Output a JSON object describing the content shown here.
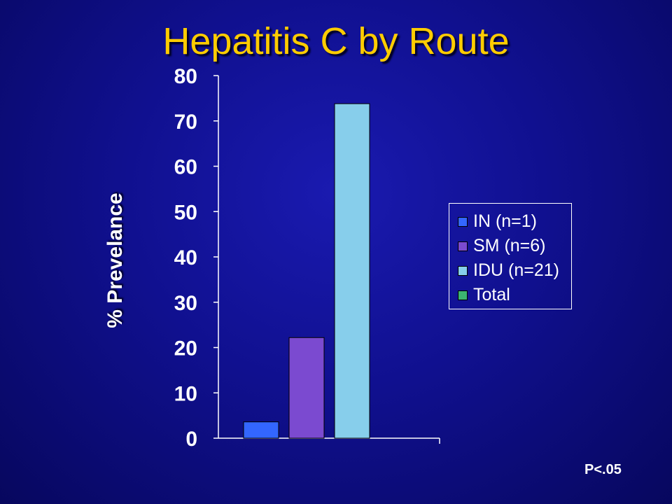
{
  "slide": {
    "title": "Hepatitis C by Route",
    "footnote": "P<.05"
  },
  "chart_data": {
    "type": "bar",
    "title": "Hepatitis C by Route",
    "ylabel": "% Prevelance",
    "xlabel": "",
    "ylim": [
      0,
      80
    ],
    "yticks": [
      "0",
      "10",
      "20",
      "30",
      "40",
      "50",
      "60",
      "70",
      "80"
    ],
    "grid": false,
    "legend_position": "right",
    "series": [
      {
        "name": "IN (n=1)",
        "values": [
          3.6
        ],
        "color": "#3366ff"
      },
      {
        "name": "SM (n=6)",
        "values": [
          22.2
        ],
        "color": "#7b4ad0"
      },
      {
        "name": "IDU (n=21)",
        "values": [
          73.8
        ],
        "color": "#87ceeb"
      },
      {
        "name": "Total",
        "values": [
          null
        ],
        "color": "#3cb371"
      }
    ],
    "annotation": "P<.05"
  }
}
